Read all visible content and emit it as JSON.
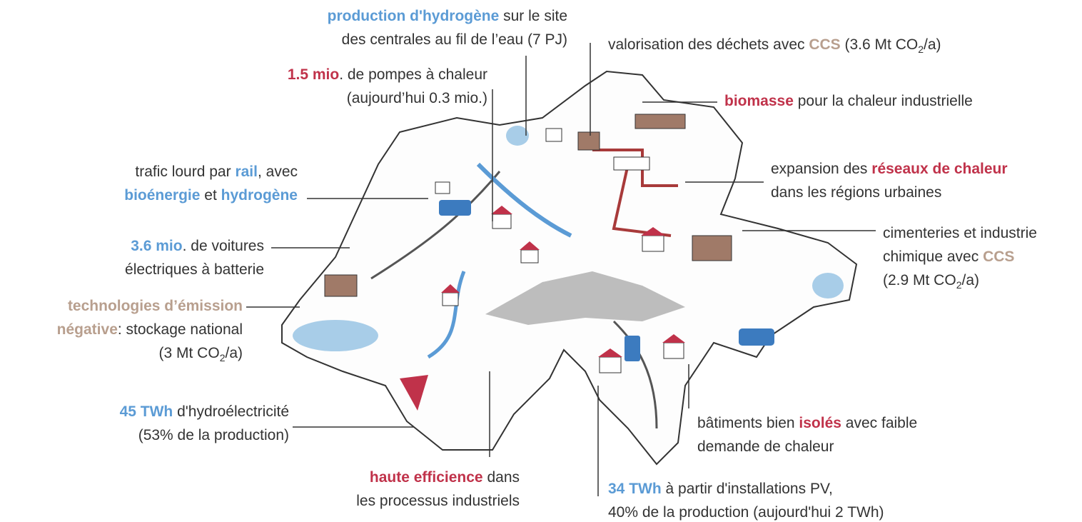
{
  "annotations": [
    {
      "lines": [
        [
          {
            "text": "production d'hydrogène",
            "color": "#5b9bd5"
          },
          {
            "text": " sur le site"
          }
        ],
        [
          {
            "text": "des centrales au fil de l’eau (7 PJ)"
          }
        ]
      ]
    },
    {
      "lines": [
        [
          {
            "text": "1.5 mio",
            "color": "#c0324a"
          },
          {
            "text": ". de pompes à chaleur"
          }
        ],
        [
          {
            "text": "(aujourd’hui 0.3 mio.)"
          }
        ]
      ]
    },
    {
      "lines": [
        [
          {
            "text": "valorisation des déchets avec "
          },
          {
            "text": "CCS",
            "color": "#b89f8e"
          },
          {
            "text": " (3.6 Mt CO"
          },
          {
            "text": "2",
            "sub": true
          },
          {
            "text": "/a)"
          }
        ]
      ]
    },
    {
      "lines": [
        [
          {
            "text": "biomasse",
            "color": "#c0324a"
          },
          {
            "text": " pour la chaleur industrielle"
          }
        ]
      ]
    },
    {
      "lines": [
        [
          {
            "text": "trafic lourd par "
          },
          {
            "text": "rail",
            "color": "#5b9bd5"
          },
          {
            "text": ", avec"
          }
        ],
        [
          {
            "text": "bioénergie",
            "color": "#5b9bd5"
          },
          {
            "text": " et "
          },
          {
            "text": "hydrogène",
            "color": "#5b9bd5"
          }
        ]
      ]
    },
    {
      "lines": [
        [
          {
            "text": "expansion des "
          },
          {
            "text": "réseaux de chaleur",
            "color": "#c0324a"
          }
        ],
        [
          {
            "text": "dans les régions urbaines"
          }
        ]
      ]
    },
    {
      "lines": [
        [
          {
            "text": "3.6 mio",
            "color": "#5b9bd5"
          },
          {
            "text": ". de voitures"
          }
        ],
        [
          {
            "text": "électriques à batterie"
          }
        ]
      ]
    },
    {
      "lines": [
        [
          {
            "text": "cimenteries et industrie"
          }
        ],
        [
          {
            "text": "chimique avec "
          },
          {
            "text": "CCS",
            "color": "#b89f8e"
          }
        ],
        [
          {
            "text": "(2.9 Mt CO"
          },
          {
            "text": "2",
            "sub": true
          },
          {
            "text": "/a)"
          }
        ]
      ]
    },
    {
      "lines": [
        [
          {
            "text": "technologies d’émission",
            "color": "#b89f8e"
          }
        ],
        [
          {
            "text": "négative",
            "color": "#b89f8e"
          },
          {
            "text": ": stockage national"
          }
        ],
        [
          {
            "text": "(3 Mt CO"
          },
          {
            "text": "2",
            "sub": true
          },
          {
            "text": "/a)"
          }
        ]
      ]
    },
    {
      "lines": [
        [
          {
            "text": "45 TWh",
            "color": "#5b9bd5"
          },
          {
            "text": " d'hydroélectricité"
          }
        ],
        [
          {
            "text": "(53% de la production)"
          }
        ]
      ]
    },
    {
      "lines": [
        [
          {
            "text": "haute efficience",
            "color": "#c0324a"
          },
          {
            "text": " dans"
          }
        ],
        [
          {
            "text": "les processus industriels"
          }
        ]
      ]
    },
    {
      "lines": [
        [
          {
            "text": "bâtiments bien "
          },
          {
            "text": "isolés",
            "color": "#c0324a"
          },
          {
            "text": " avec faible"
          }
        ],
        [
          {
            "text": "demande de chaleur"
          }
        ]
      ]
    },
    {
      "lines": [
        [
          {
            "text": "34 TWh",
            "color": "#5b9bd5"
          },
          {
            "text": " à partir d'installations PV,"
          }
        ],
        [
          {
            "text": "40% de la production (aujourd'hui 2 TWh)"
          }
        ]
      ]
    }
  ]
}
